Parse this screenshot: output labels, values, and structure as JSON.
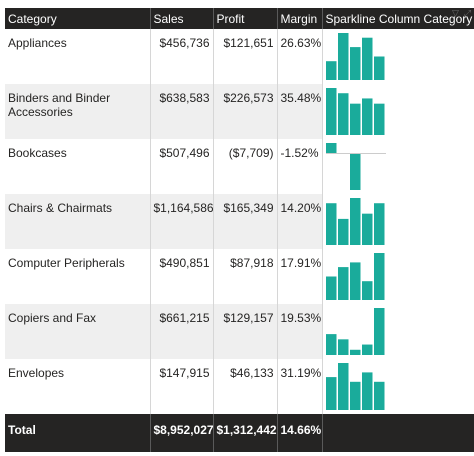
{
  "table": {
    "headers": {
      "category": "Category",
      "sales": "Sales",
      "profit": "Profit",
      "margin": "Margin",
      "sparkline": "Sparkline Column Category"
    },
    "rows": [
      {
        "category": "Appliances",
        "sales": "$456,736",
        "profit": "$121,651",
        "margin": "26.63%",
        "spark": [
          4,
          10,
          7,
          9,
          5
        ]
      },
      {
        "category": "Binders and Binder Accessories",
        "sales": "$638,583",
        "profit": "$226,573",
        "margin": "35.48%",
        "spark": [
          9,
          8,
          6,
          7,
          6
        ]
      },
      {
        "category": "Bookcases",
        "sales": "$507,496",
        "profit": "($7,709)",
        "margin": "-1.52%",
        "spark": [
          2,
          0,
          -7,
          0,
          0
        ]
      },
      {
        "category": "Chairs & Chairmats",
        "sales": "$1,164,586",
        "profit": "$165,349",
        "margin": "14.20%",
        "spark": [
          8,
          5,
          9,
          6,
          8
        ]
      },
      {
        "category": "Computer Peripherals",
        "sales": "$490,851",
        "profit": "$87,918",
        "margin": "17.91%",
        "spark": [
          5,
          7,
          8,
          4,
          10
        ]
      },
      {
        "category": "Copiers and Fax",
        "sales": "$661,215",
        "profit": "$129,157",
        "margin": "19.53%",
        "spark": [
          4,
          3,
          1,
          2,
          9
        ]
      },
      {
        "category": "Envelopes",
        "sales": "$147,915",
        "profit": "$46,133",
        "margin": "31.19%",
        "spark": [
          7,
          10,
          6,
          8,
          6
        ]
      }
    ],
    "total": {
      "label": "Total",
      "sales": "$8,952,027",
      "profit": "$1,312,442",
      "margin": "14.66%"
    }
  },
  "colors": {
    "header_bg": "#252423",
    "spark_bar": "#1aab9b",
    "even_row": "#efefef"
  },
  "icons": [
    "filter-icon",
    "focus-mode-icon"
  ]
}
